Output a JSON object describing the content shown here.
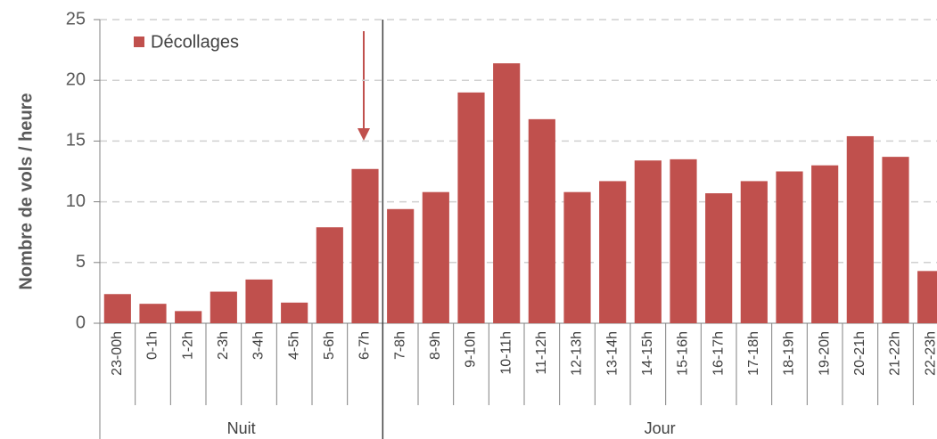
{
  "chart_data": {
    "type": "bar",
    "ylabel": "Nombre de vols / heure",
    "categories": [
      "23-00h",
      "0-1h",
      "1-2h",
      "2-3h",
      "3-4h",
      "4-5h",
      "5-6h",
      "6-7h",
      "7-8h",
      "8-9h",
      "9-10h",
      "10-11h",
      "11-12h",
      "12-13h",
      "13-14h",
      "14-15h",
      "15-16h",
      "16-17h",
      "17-18h",
      "18-19h",
      "19-20h",
      "20-21h",
      "21-22h",
      "22-23h"
    ],
    "groups": [
      {
        "label": "Nuit",
        "size": 8
      },
      {
        "label": "Jour",
        "size": 16
      }
    ],
    "series": [
      {
        "name": "Décollages",
        "color": "#c0504d",
        "values": [
          2.4,
          1.6,
          1.0,
          2.6,
          3.6,
          1.7,
          7.9,
          12.7,
          9.4,
          10.8,
          19.0,
          21.4,
          16.8,
          10.8,
          11.7,
          13.4,
          13.5,
          10.7,
          11.7,
          12.5,
          13.0,
          15.4,
          13.7,
          4.3
        ]
      }
    ],
    "ylim": [
      0,
      25
    ],
    "yticks": [
      0,
      5,
      10,
      15,
      20,
      25
    ],
    "grid": true,
    "legend": "upper left"
  }
}
